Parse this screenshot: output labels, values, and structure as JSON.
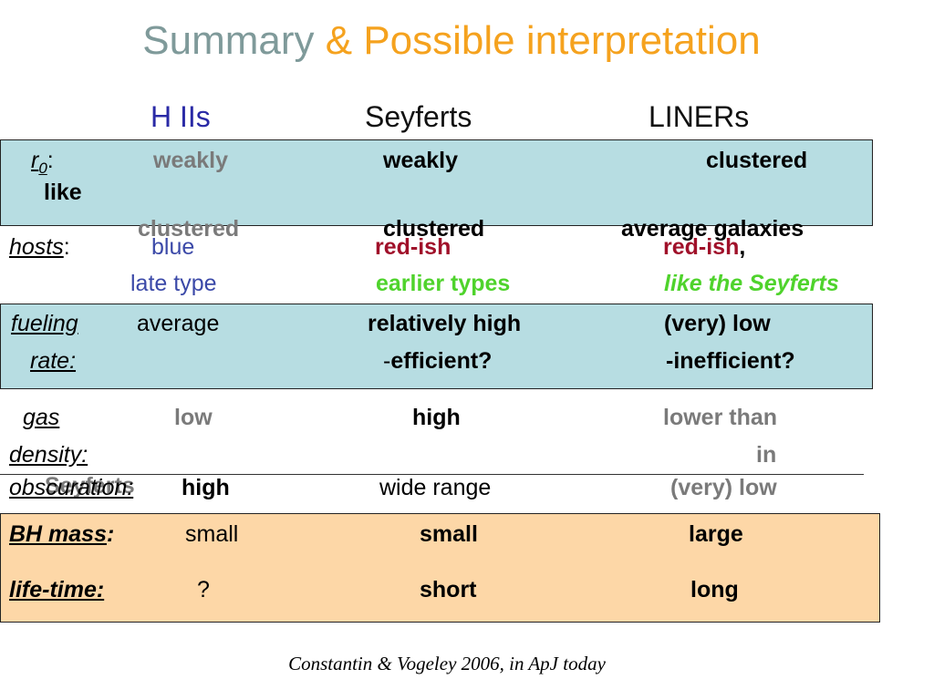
{
  "title": {
    "part1": "Summary ",
    "part2": "& Possible interpretation"
  },
  "columns": {
    "h2": "H IIs",
    "seyferts": "Seyferts",
    "liners": "LINERs"
  },
  "r0": {
    "label_r": "r",
    "label_sub": "0",
    "label_colon": ":",
    "h2_line1": "weakly",
    "h2_line2": "clustered",
    "sey_line1": "weakly",
    "sey_line2": "clustered",
    "lin_line1": "clustered",
    "lin_like": "like",
    "lin_line2": "average galaxies"
  },
  "hosts": {
    "label": "hosts",
    "colon": ":",
    "h2_color": "blue",
    "h2_type": "late type",
    "sey_color": "red-ish",
    "sey_type": "earlier types",
    "lin_color": "red-ish",
    "lin_comma": ",",
    "lin_type": "like the Seyferts"
  },
  "fueling": {
    "label1": "fueling",
    "label2": "rate:",
    "h2": "average",
    "sey1": "relatively high",
    "sey2_dash": "-",
    "sey2": "efficient?",
    "lin1": "(very) low",
    "lin2": "-inefficient?"
  },
  "gas": {
    "label1": "gas",
    "label2": "density:",
    "h2": "low",
    "sey": "high",
    "lin1": "lower than",
    "lin2": "in",
    "lin3": "Seyferts"
  },
  "obscuration": {
    "label": "obscuration:",
    "h2": "high",
    "sey": "wide range",
    "lin": "(very) low"
  },
  "bh": {
    "label": "BH mass",
    "colon": ":",
    "h2": "small",
    "sey": "small",
    "lin": "large"
  },
  "life": {
    "label": "life-time:",
    "h2": "?",
    "sey": "short",
    "lin": "long"
  },
  "citation": "Constantin & Vogeley 2006, in ApJ today",
  "colors": {
    "title_gray": "#7f9a9a",
    "title_orange": "#f5a21e",
    "teal_box": "#b7dde2",
    "peach_box": "#fdd7a7",
    "crimson": "#a0102a",
    "green": "#4fd32c",
    "blue": "#3b49a8"
  }
}
